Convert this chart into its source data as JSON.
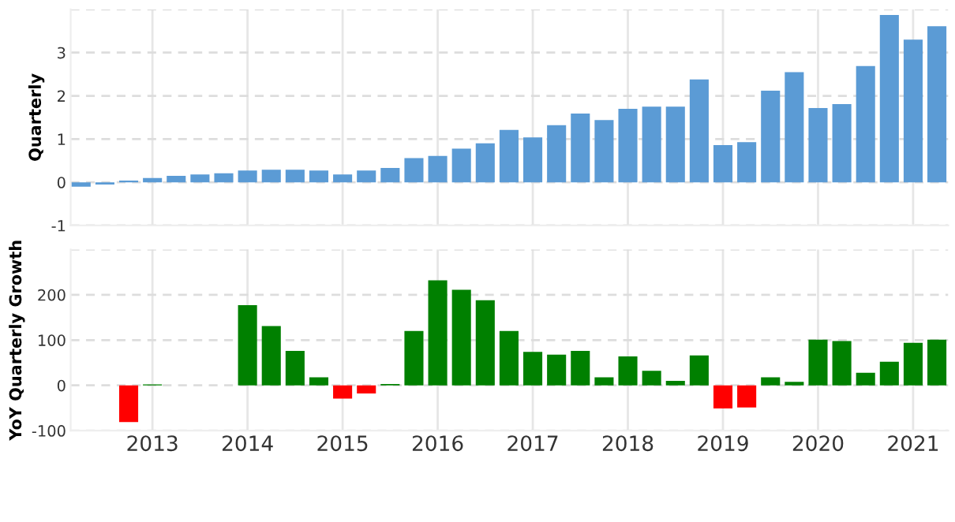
{
  "chart_data": [
    {
      "type": "bar",
      "ylabel": "Quarterly",
      "x": [
        2012.25,
        2012.5,
        2012.75,
        2013,
        2013.25,
        2013.5,
        2013.75,
        2014,
        2014.25,
        2014.5,
        2014.75,
        2015,
        2015.25,
        2015.5,
        2015.75,
        2016,
        2016.25,
        2016.5,
        2016.75,
        2017,
        2017.25,
        2017.5,
        2017.75,
        2018,
        2018.25,
        2018.5,
        2018.75,
        2019,
        2019.25,
        2019.5,
        2019.75,
        2020,
        2020.25,
        2020.5,
        2020.75,
        2021,
        2021.25
      ],
      "values": [
        -0.1,
        -0.05,
        0.04,
        0.1,
        0.15,
        0.18,
        0.21,
        0.27,
        0.29,
        0.29,
        0.27,
        0.18,
        0.27,
        0.33,
        0.56,
        0.61,
        0.78,
        0.9,
        1.21,
        1.04,
        1.32,
        1.59,
        1.44,
        1.7,
        1.75,
        1.75,
        2.38,
        0.86,
        0.93,
        2.12,
        2.55,
        1.72,
        1.81,
        2.69,
        3.87,
        3.3,
        3.61
      ],
      "color": "#5b9bd5",
      "xlim": [
        2012.14,
        2021.37
      ],
      "xticks": [
        2013,
        2014,
        2015,
        2016,
        2017,
        2018,
        2019,
        2020,
        2021
      ],
      "ylim": [
        -1,
        4
      ],
      "yticks": [
        -1,
        0,
        1,
        2,
        3,
        {
          "value": 4,
          "label": null
        }
      ],
      "tick_labels": "y",
      "grid": true
    },
    {
      "type": "bar",
      "ylabel": "YoY Quarterly Growth",
      "x": [
        2012.75,
        2013,
        2013.25,
        2013.5,
        2013.75,
        2014,
        2014.25,
        2014.5,
        2014.75,
        2015,
        2015.25,
        2015.5,
        2015.75,
        2016,
        2016.25,
        2016.5,
        2016.75,
        2017,
        2017.25,
        2017.5,
        2017.75,
        2018,
        2018.25,
        2018.5,
        2018.75,
        2019,
        2019.25,
        2019.5,
        2019.75,
        2020,
        2020.25,
        2020.5,
        2020.75,
        2021,
        2021.25
      ],
      "values": [
        -81,
        2,
        null,
        null,
        null,
        177,
        131,
        76,
        18,
        -29,
        -18,
        3,
        120,
        232,
        211,
        188,
        120,
        74,
        68,
        76,
        18,
        64,
        32,
        10,
        66,
        -51,
        -49,
        18,
        8,
        101,
        98,
        28,
        52,
        94,
        101
      ],
      "colors": [
        "#ff0000",
        "#008000",
        null,
        null,
        null,
        "#008000",
        "#008000",
        "#008000",
        "#008000",
        "#ff0000",
        "#ff0000",
        "#008000",
        "#008000",
        "#008000",
        "#008000",
        "#008000",
        "#008000",
        "#008000",
        "#008000",
        "#008000",
        "#008000",
        "#008000",
        "#008000",
        "#008000",
        "#008000",
        "#ff0000",
        "#ff0000",
        "#008000",
        "#008000",
        "#008000",
        "#008000",
        "#008000",
        "#008000",
        "#008000",
        "#008000"
      ],
      "xlim": [
        2012.14,
        2021.37
      ],
      "xticks": [
        2013,
        2014,
        2015,
        2016,
        2017,
        2018,
        2019,
        2020,
        2021
      ],
      "ylim": [
        -100,
        300
      ],
      "yticks": [
        -100,
        0,
        100,
        200,
        {
          "value": 300,
          "label": null
        }
      ],
      "grid": true
    }
  ]
}
